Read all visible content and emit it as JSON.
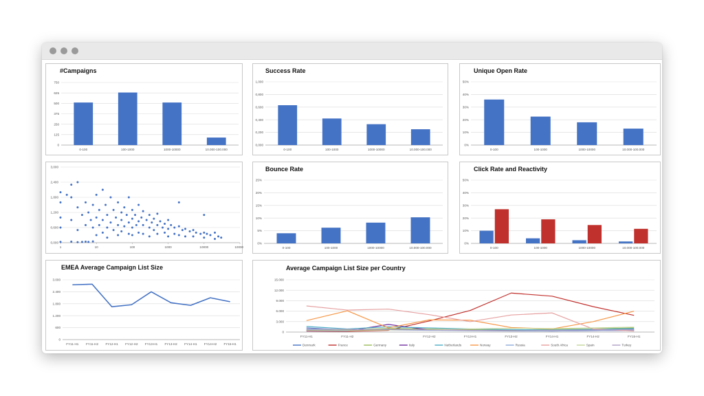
{
  "window": {
    "controls": [
      "close",
      "minimize",
      "zoom"
    ]
  },
  "colors": {
    "blue": "#4472C4",
    "red": "#C0302C",
    "grid": "#D9D9D9",
    "axis": "#A6A6A6"
  },
  "chart_data": [
    {
      "id": "campaigns",
      "type": "bar",
      "title": "#Campaigns",
      "categories": [
        "0-100",
        "100-1000",
        "1000-10000",
        "10.000-100.000"
      ],
      "values": [
        510,
        630,
        510,
        90
      ],
      "ylim": [
        0,
        750
      ],
      "yticks": [
        0,
        125,
        250,
        375,
        500,
        625,
        750
      ],
      "ytick_labels": [
        "0",
        "125",
        "250",
        "375",
        "500",
        "625",
        "750"
      ],
      "grid": true
    },
    {
      "id": "success-rate",
      "type": "bar",
      "title": "Success Rate",
      "categories": [
        "0-100",
        "100-1000",
        "1000-10000",
        "10.000-100.000"
      ],
      "values": [
        0.63,
        0.42,
        0.33,
        0.25
      ],
      "ylim": [
        0,
        1
      ],
      "yticks": [
        0,
        0.2,
        0.4,
        0.6,
        0.8,
        1
      ],
      "ytick_labels": [
        "0,000",
        "0,200",
        "0,400",
        "0,600",
        "0,800",
        "1,000"
      ],
      "grid": true
    },
    {
      "id": "unique-open-rate",
      "type": "bar",
      "title": "Unique Open Rate",
      "categories": [
        "0-100",
        "100-1000",
        "1000-10000",
        "10.000-100.000"
      ],
      "values": [
        36,
        22.5,
        18,
        13
      ],
      "ylim": [
        0,
        50
      ],
      "yticks": [
        0,
        10,
        20,
        30,
        40,
        50
      ],
      "ytick_labels": [
        "0%",
        "10%",
        "20%",
        "30%",
        "40%",
        "50%"
      ],
      "grid": true
    },
    {
      "id": "scatter",
      "type": "scatter",
      "title": "",
      "x_scale": "log",
      "xlim": [
        1,
        100000
      ],
      "xticks": [
        1,
        10,
        100,
        1000,
        10000,
        100000
      ],
      "xtick_labels": [
        "1",
        "10",
        "100",
        "1000",
        "10000",
        "100000"
      ],
      "ylim": [
        0,
        3000
      ],
      "yticks": [
        0,
        600,
        1200,
        1800,
        2400,
        3000
      ],
      "ytick_labels": [
        "0,000",
        "0,600",
        "1,200",
        "1,800",
        "2,400",
        "3,000"
      ],
      "grid": true,
      "points": [
        [
          1,
          2000
        ],
        [
          1,
          1600
        ],
        [
          1,
          1000
        ],
        [
          1,
          600
        ],
        [
          1,
          30
        ],
        [
          1.5,
          1900
        ],
        [
          2,
          2300
        ],
        [
          2,
          1800
        ],
        [
          2,
          900
        ],
        [
          2,
          40
        ],
        [
          3,
          2400
        ],
        [
          3,
          1400
        ],
        [
          3,
          500
        ],
        [
          3,
          20
        ],
        [
          4,
          1100
        ],
        [
          4,
          30
        ],
        [
          5,
          1600
        ],
        [
          5,
          700
        ],
        [
          5,
          40
        ],
        [
          6,
          1200
        ],
        [
          6,
          30
        ],
        [
          7,
          900
        ],
        [
          8,
          1500
        ],
        [
          8,
          600
        ],
        [
          8,
          50
        ],
        [
          10,
          1000
        ],
        [
          10,
          1900
        ],
        [
          10,
          300
        ],
        [
          12,
          1300
        ],
        [
          12,
          700
        ],
        [
          15,
          2100
        ],
        [
          15,
          900
        ],
        [
          15,
          400
        ],
        [
          18,
          1500
        ],
        [
          20,
          1100
        ],
        [
          20,
          600
        ],
        [
          20,
          200
        ],
        [
          25,
          1800
        ],
        [
          25,
          800
        ],
        [
          30,
          1300
        ],
        [
          30,
          500
        ],
        [
          35,
          1000
        ],
        [
          40,
          1600
        ],
        [
          40,
          700
        ],
        [
          40,
          300
        ],
        [
          50,
          1200
        ],
        [
          50,
          900
        ],
        [
          50,
          450
        ],
        [
          60,
          1400
        ],
        [
          60,
          650
        ],
        [
          70,
          1100
        ],
        [
          80,
          1800
        ],
        [
          80,
          800
        ],
        [
          80,
          350
        ],
        [
          100,
          1300
        ],
        [
          100,
          950
        ],
        [
          100,
          600
        ],
        [
          100,
          300
        ],
        [
          120,
          1100
        ],
        [
          130,
          700
        ],
        [
          150,
          1500
        ],
        [
          150,
          850
        ],
        [
          150,
          400
        ],
        [
          180,
          1000
        ],
        [
          200,
          1250
        ],
        [
          200,
          700
        ],
        [
          200,
          350
        ],
        [
          250,
          900
        ],
        [
          300,
          1100
        ],
        [
          300,
          600
        ],
        [
          300,
          250
        ],
        [
          350,
          800
        ],
        [
          400,
          950
        ],
        [
          400,
          500
        ],
        [
          500,
          1150
        ],
        [
          500,
          700
        ],
        [
          500,
          350
        ],
        [
          600,
          850
        ],
        [
          700,
          600
        ],
        [
          800,
          750
        ],
        [
          800,
          400
        ],
        [
          1000,
          900
        ],
        [
          1000,
          550
        ],
        [
          1000,
          250
        ],
        [
          1200,
          700
        ],
        [
          1500,
          600
        ],
        [
          1500,
          350
        ],
        [
          2000,
          1600
        ],
        [
          2000,
          650
        ],
        [
          2000,
          300
        ],
        [
          2500,
          500
        ],
        [
          3000,
          550
        ],
        [
          3000,
          250
        ],
        [
          4000,
          450
        ],
        [
          5000,
          500
        ],
        [
          5000,
          250
        ],
        [
          6000,
          400
        ],
        [
          8000,
          350
        ],
        [
          10000,
          1100
        ],
        [
          10000,
          400
        ],
        [
          10000,
          200
        ],
        [
          12000,
          350
        ],
        [
          15000,
          300
        ],
        [
          20000,
          400
        ],
        [
          20000,
          150
        ],
        [
          25000,
          250
        ],
        [
          30000,
          200
        ]
      ]
    },
    {
      "id": "bounce-rate",
      "type": "bar",
      "title": "Bounce Rate",
      "categories": [
        "0-100",
        "100-1000",
        "1000-10000",
        "10.000-100.000"
      ],
      "values": [
        4,
        6.2,
        8.2,
        10.3
      ],
      "ylim": [
        0,
        25
      ],
      "yticks": [
        0,
        5,
        10,
        15,
        20,
        25
      ],
      "ytick_labels": [
        "0%",
        "5%",
        "10%",
        "15%",
        "20%",
        "25%"
      ],
      "grid": true
    },
    {
      "id": "click-rate",
      "type": "bar",
      "title": "Click Rate and Reactivity",
      "categories": [
        "0-100",
        "100-1000",
        "1000-10000",
        "10.000-100.000"
      ],
      "series": [
        {
          "color": "#4472C4",
          "values": [
            10,
            4,
            2.5,
            1.5
          ]
        },
        {
          "color": "#C0302C",
          "values": [
            27,
            19,
            14.5,
            11.5
          ]
        }
      ],
      "ylim": [
        0,
        50
      ],
      "yticks": [
        0,
        10,
        20,
        30,
        40,
        50
      ],
      "ytick_labels": [
        "0%",
        "10%",
        "20%",
        "30%",
        "40%",
        "50%"
      ],
      "grid": true
    },
    {
      "id": "emea-avg",
      "type": "line",
      "title": "EMEA Average Campaign List Size",
      "categories": [
        "FY11-H1",
        "FY11-H2",
        "FY12-H1",
        "FY12-H2",
        "FY13-H1",
        "FY13-H2",
        "FY14-H1",
        "FY14-H2",
        "FY15-H1"
      ],
      "values": [
        2750,
        2780,
        1650,
        1750,
        2400,
        1850,
        1720,
        2100,
        1900
      ],
      "ylim": [
        0,
        3000
      ],
      "yticks": [
        0,
        600,
        1200,
        1800,
        2400,
        3000
      ],
      "ytick_labels": [
        "0",
        "600",
        "1.200",
        "1.800",
        "2.400",
        "3.000"
      ],
      "grid": true
    },
    {
      "id": "avg-per-country",
      "type": "line",
      "title": "Average Campaign List Size per Country",
      "categories": [
        "FY11-H1",
        "FY11-H2",
        "FY12-H1",
        "FY12-H2",
        "FY13-H1",
        "FY13-H2",
        "FY14-H1",
        "FY14-H2",
        "FY15-H1"
      ],
      "x_labels": [
        "FY11-H1",
        "FY11-H2",
        "FY12-H2",
        "FY13-H1",
        "FY13-H2",
        "FY14-H1",
        "FY14-H2",
        "FY15-H1"
      ],
      "ylim": [
        0,
        15000
      ],
      "yticks": [
        0,
        3000,
        6000,
        9000,
        12000,
        15000
      ],
      "ytick_labels": [
        "0",
        "3.000",
        "6.000",
        "9.000",
        "12.000",
        "15.000"
      ],
      "grid": true,
      "legend_position": "bottom",
      "series": [
        {
          "name": "Denmark",
          "color": "#4472C4",
          "values": [
            1200,
            600,
            900,
            800,
            700,
            600,
            500,
            700,
            800
          ]
        },
        {
          "name": "France",
          "color": "#C0302C",
          "values": [
            300,
            200,
            500,
            3200,
            6200,
            11200,
            10300,
            7300,
            4800
          ]
        },
        {
          "name": "Germany",
          "color": "#9BBB59",
          "values": [
            800,
            700,
            1000,
            900,
            700,
            600,
            800,
            900,
            1200
          ]
        },
        {
          "name": "Italy",
          "color": "#7030A0",
          "values": [
            400,
            300,
            2200,
            600,
            500,
            400,
            300,
            400,
            500
          ]
        },
        {
          "name": "Netherlands",
          "color": "#4BACC6",
          "values": [
            1600,
            900,
            1500,
            1200,
            900,
            700,
            600,
            800,
            1000
          ]
        },
        {
          "name": "Norway",
          "color": "#F79646",
          "values": [
            3300,
            6100,
            1200,
            3500,
            3400,
            1300,
            900,
            3000,
            6000
          ]
        },
        {
          "name": "Russia",
          "color": "#8EA9DB",
          "values": [
            700,
            500,
            600,
            500,
            400,
            300,
            300,
            400,
            500
          ]
        },
        {
          "name": "South Africa",
          "color": "#E6A0A0",
          "values": [
            7500,
            6300,
            6600,
            5000,
            3000,
            4900,
            5500,
            900,
            300
          ]
        },
        {
          "name": "Spain",
          "color": "#C4D79B",
          "values": [
            500,
            400,
            600,
            700,
            900,
            1100,
            1000,
            1200,
            1400
          ]
        },
        {
          "name": "Turkey",
          "color": "#B1A0C7",
          "values": [
            900,
            800,
            700,
            600,
            500,
            400,
            500,
            600,
            700
          ]
        }
      ]
    }
  ]
}
